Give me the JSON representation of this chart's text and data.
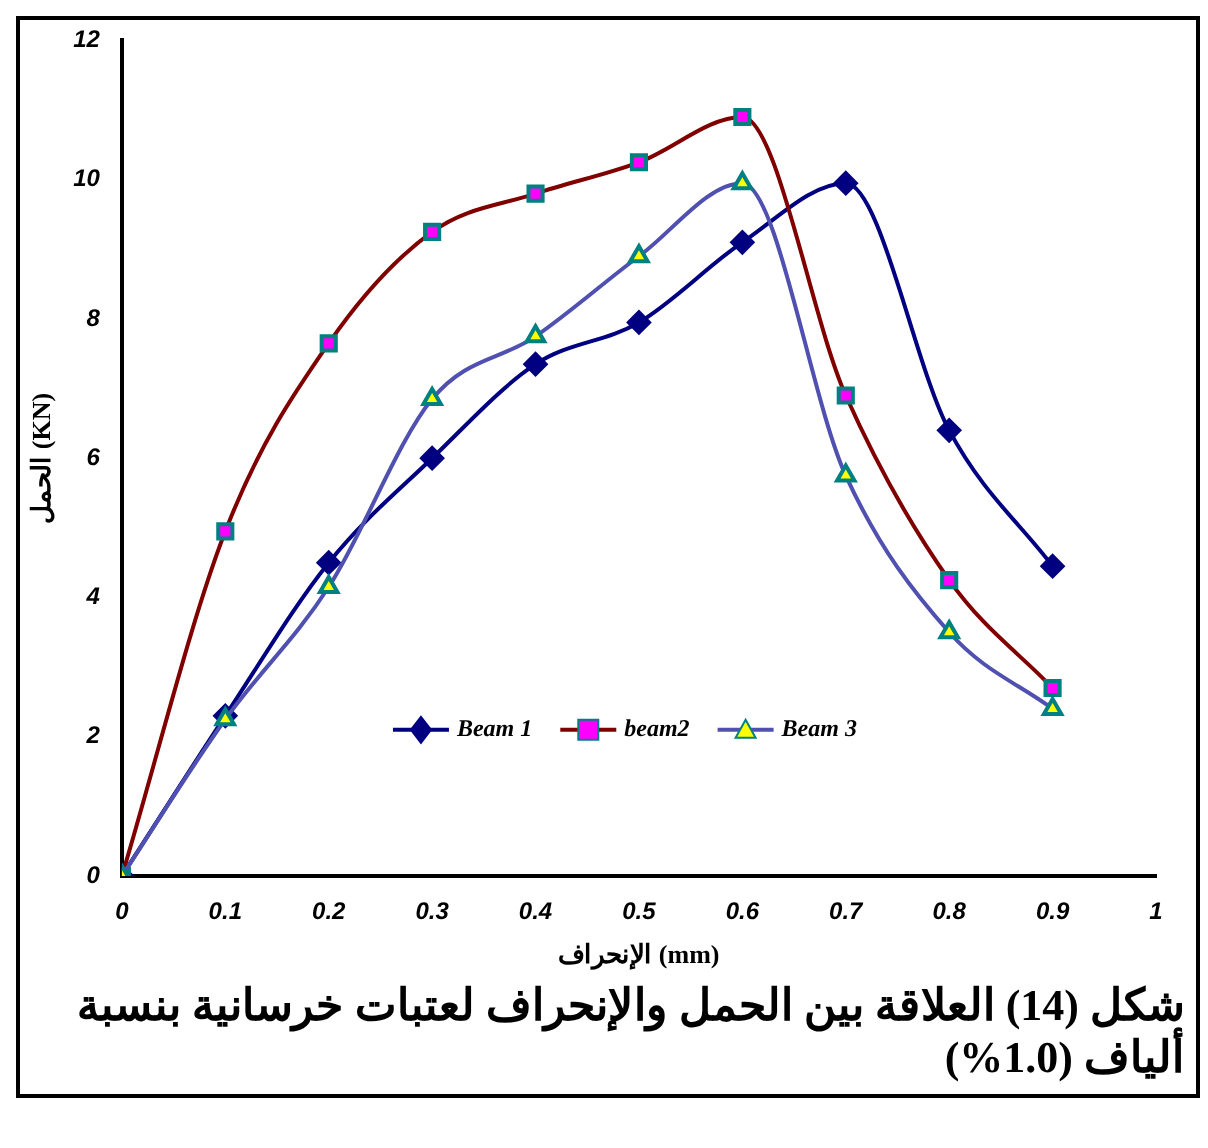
{
  "chart_data": {
    "type": "line",
    "xlabel": "الإنحراف (mm)",
    "ylabel": "الحمل (KN)",
    "annotations": [
      "شكل (14) العلاقة بين الحمل والإنحراف لعتبات خرسانية بنسبة ألياف (1.0%)"
    ],
    "x": [
      0,
      0.1,
      0.2,
      0.3,
      0.4,
      0.5,
      0.6,
      0.7,
      0.8,
      0.9
    ],
    "series": [
      {
        "name": "Beam 1",
        "color": "#000080",
        "marker": "diamond",
        "values": [
          0,
          2.3,
          4.5,
          6.0,
          7.35,
          7.95,
          9.1,
          9.95,
          6.4,
          4.45
        ]
      },
      {
        "name": "beam2",
        "color": "#800000",
        "marker": "square",
        "values": [
          0,
          4.95,
          7.65,
          9.25,
          9.8,
          10.25,
          10.9,
          6.9,
          4.25,
          2.7
        ]
      },
      {
        "name": "Beam 3",
        "color": "#5050b0",
        "marker": "triangle",
        "values": [
          0,
          2.25,
          4.15,
          6.85,
          7.75,
          8.9,
          9.95,
          5.75,
          3.5,
          2.4
        ]
      }
    ],
    "xlim": [
      0,
      1
    ],
    "xticks": [
      0,
      0.1,
      0.2,
      0.3,
      0.4,
      0.5,
      0.6,
      0.7,
      0.8,
      0.9,
      1
    ],
    "ylim": [
      0,
      12
    ],
    "yticks": [
      0,
      2,
      4,
      6,
      8,
      10,
      12
    ],
    "grid": false,
    "legend": "bottom"
  }
}
